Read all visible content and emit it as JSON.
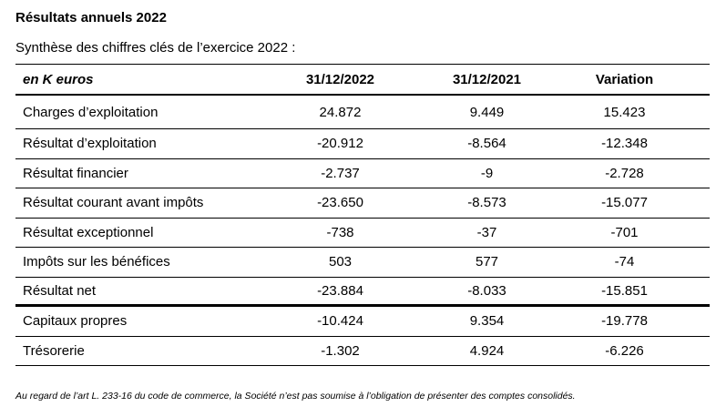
{
  "title": "Résultats annuels 2022",
  "subtitle": "Synthèse des chiffres clés de l’exercice 2022 :",
  "table": {
    "headers": [
      "en K euros",
      "31/12/2022",
      "31/12/2021",
      "Variation"
    ],
    "rows": [
      [
        "Charges d’exploitation",
        "24.872",
        "9.449",
        "15.423"
      ],
      [
        "Résultat d’exploitation",
        "-20.912",
        "-8.564",
        "-12.348"
      ],
      [
        "Résultat financier",
        "-2.737",
        "-9",
        "-2.728"
      ],
      [
        "Résultat courant avant impôts",
        "-23.650",
        "-8.573",
        "-15.077"
      ],
      [
        "Résultat exceptionnel",
        "-738",
        "-37",
        "-701"
      ],
      [
        "Impôts sur les bénéfices",
        "503",
        "577",
        "-74"
      ],
      [
        "Résultat net",
        "-23.884",
        "-8.033",
        "-15.851"
      ],
      [
        "Capitaux propres",
        "-10.424",
        "9.354",
        "-19.778"
      ],
      [
        "Trésorerie",
        "-1.302",
        "4.924",
        "-6.226"
      ]
    ]
  },
  "footnote": "Au regard de l’art L. 233-16 du code de commerce, la Société n’est pas soumise à l’obligation de présenter des comptes consolidés."
}
